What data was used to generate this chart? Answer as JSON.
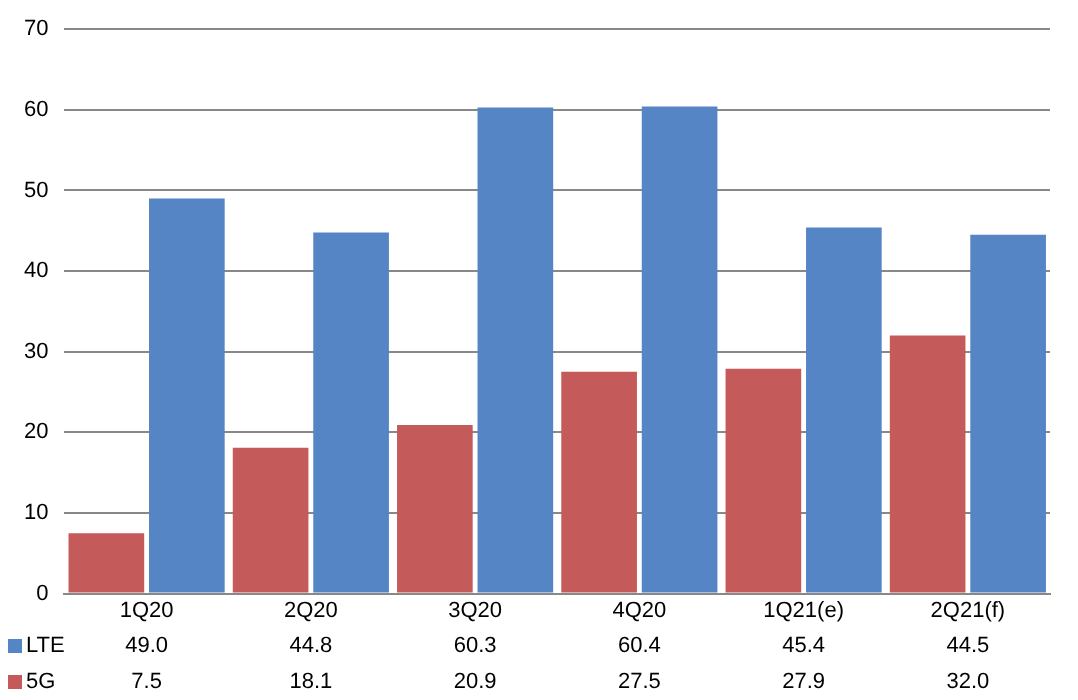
{
  "chart_data": {
    "type": "bar",
    "categories": [
      "1Q20",
      "2Q20",
      "3Q20",
      "4Q20",
      "1Q21(e)",
      "2Q21(f)"
    ],
    "series": [
      {
        "name": "5G",
        "color": "#c55a5a",
        "values": [
          7.5,
          18.1,
          20.9,
          27.5,
          27.9,
          32.0
        ],
        "value_labels": [
          "7.5",
          "18.1",
          "20.9",
          "27.5",
          "27.9",
          "32.0"
        ]
      },
      {
        "name": "LTE",
        "color": "#5585c5",
        "values": [
          49.0,
          44.8,
          60.3,
          60.4,
          45.4,
          44.5
        ],
        "value_labels": [
          "49.0",
          "44.8",
          "60.3",
          "60.4",
          "45.4",
          "44.5"
        ]
      }
    ],
    "ylim": [
      0,
      70
    ],
    "yticks": [
      0,
      10,
      20,
      30,
      40,
      50,
      60,
      70
    ],
    "grid": "y",
    "legend": "bottom"
  }
}
